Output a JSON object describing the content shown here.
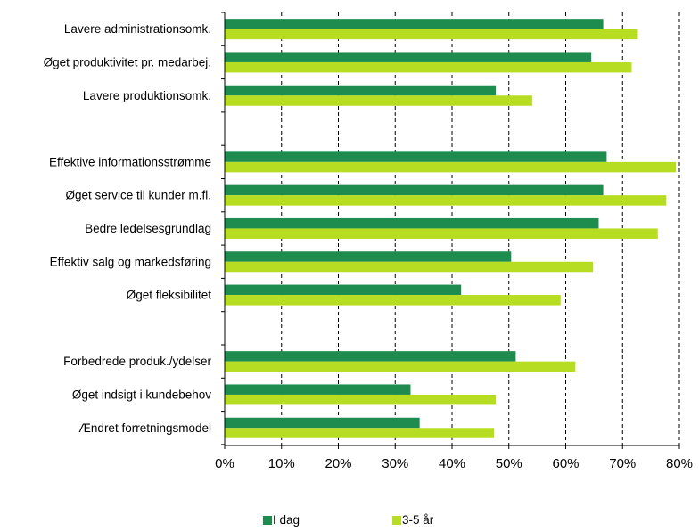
{
  "chart_data": {
    "type": "bar",
    "orientation": "horizontal",
    "title": "",
    "xlabel": "",
    "ylabel": "",
    "xlim": [
      0,
      80
    ],
    "x_ticks": [
      "0%",
      "10%",
      "20%",
      "30%",
      "40%",
      "50%",
      "60%",
      "70%",
      "80%"
    ],
    "grid": "vertical dashed",
    "legend_position": "bottom",
    "groups": [
      [
        "Lavere administrationsomk.",
        "Øget produktivitet pr. medarbej.",
        "Lavere produktionsomk."
      ],
      [
        "Effektive informationsstrømme",
        "Øget service til kunder m.fl.",
        "Bedre ledelsesgrundlag",
        "Effektiv salg og markedsføring",
        "Øget fleksibilitet"
      ],
      [
        "Forbedrede produk./ydelser",
        "Øget indsigt i kundebehov",
        "Ændret forretningsmodel"
      ]
    ],
    "categories": [
      "Lavere administrationsomk.",
      "Øget produktivitet pr. medarbej.",
      "Lavere produktionsomk.",
      "Effektive informationsstrømme",
      "Øget service til kunder m.fl.",
      "Bedre ledelsesgrundlag",
      "Effektiv salg og markedsføring",
      "Øget fleksibilitet",
      "Forbedrede produk./ydelser",
      "Øget indsigt i kundebehov",
      "Ændret forretningsmodel"
    ],
    "series": [
      {
        "name": "I dag",
        "color": "#1e8c4e",
        "values": [
          66.6,
          64.5,
          47.7,
          67.2,
          66.6,
          65.8,
          50.4,
          41.6,
          51.2,
          32.7,
          34.3
        ]
      },
      {
        "name": "3-5 år",
        "color": "#b7dd23",
        "values": [
          72.7,
          71.6,
          54.1,
          79.4,
          77.7,
          76.2,
          64.8,
          59.1,
          61.7,
          47.7,
          47.4
        ]
      }
    ]
  }
}
